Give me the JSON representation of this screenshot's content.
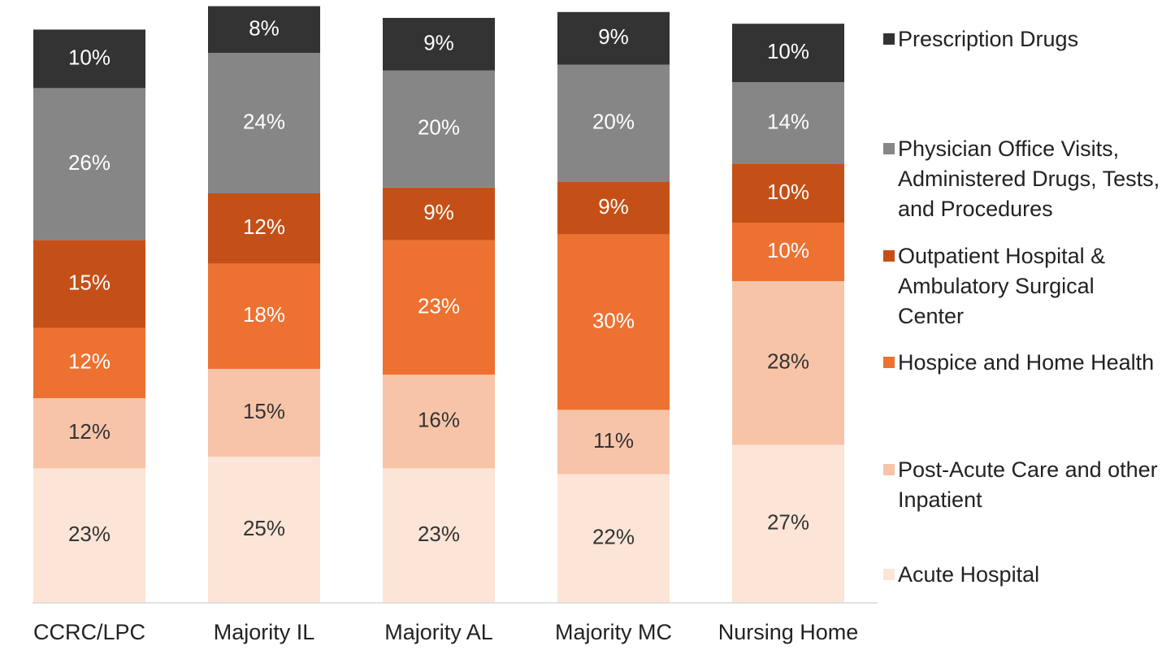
{
  "chart_data": {
    "type": "stacked_bar",
    "categories": [
      "CCRC/LPC",
      "Majority IL",
      "Majority AL",
      "Majority MC",
      "Nursing Home"
    ],
    "ylim": [
      0,
      100
    ],
    "series": [
      {
        "name": "Acute Hospital",
        "color": "#fce4d6",
        "values": [
          23,
          25,
          23,
          22,
          27
        ],
        "value_labels": [
          "23%",
          "25%",
          "23%",
          "22%",
          "27%"
        ]
      },
      {
        "name": "Post-Acute Care and other Inpatient",
        "color": "#f8c4a8",
        "values": [
          12,
          15,
          16,
          11,
          28
        ],
        "value_labels": [
          "12%",
          "15%",
          "16%",
          "11%",
          "28%"
        ]
      },
      {
        "name": "Hospice and Home Health",
        "color": "#ed7131",
        "values": [
          12,
          18,
          23,
          30,
          10
        ],
        "value_labels": [
          "12%",
          "18%",
          "23%",
          "30%",
          "10%"
        ]
      },
      {
        "name": "Outpatient Hospital & Ambulatory Surgical Center",
        "color": "#c55017",
        "values": [
          15,
          12,
          9,
          9,
          10
        ],
        "value_labels": [
          "15%",
          "12%",
          "9%",
          "9%",
          "10%"
        ]
      },
      {
        "name": "Physician Office Visits, Administered Drugs, Tests, and Procedures",
        "color": "#868686",
        "values": [
          26,
          24,
          20,
          20,
          14
        ],
        "value_labels": [
          "26%",
          "24%",
          "20%",
          "20%",
          "14%"
        ]
      },
      {
        "name": "Prescription Drugs",
        "color": "#333333",
        "values": [
          10,
          8,
          9,
          9,
          10
        ],
        "value_labels": [
          "10%",
          "8%",
          "9%",
          "9%",
          "10%"
        ]
      }
    ]
  }
}
